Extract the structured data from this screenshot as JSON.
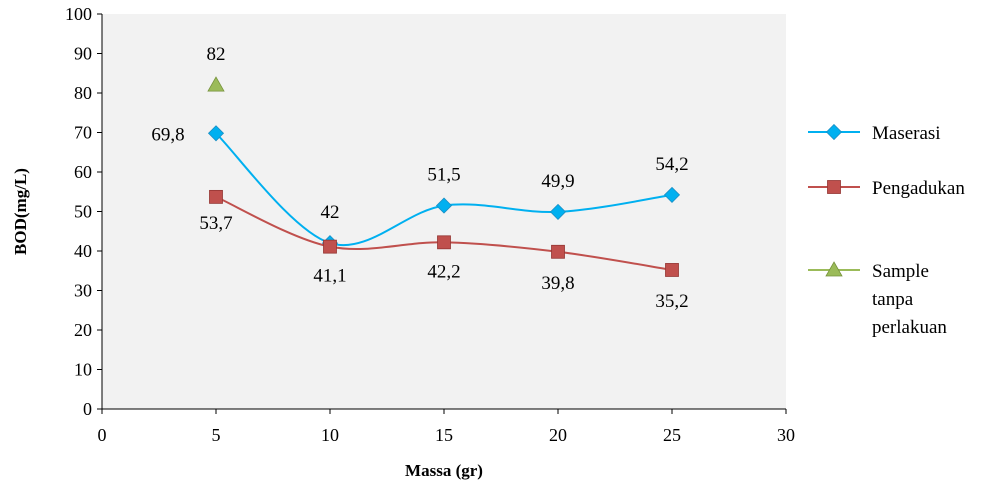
{
  "chart_data": {
    "type": "line",
    "title": "",
    "xlabel": "Massa (gr)",
    "ylabel": "BOD(mg/L)",
    "xlim": [
      0,
      30
    ],
    "ylim": [
      0,
      100
    ],
    "xticks": [
      0,
      5,
      10,
      15,
      20,
      25,
      30
    ],
    "yticks": [
      0,
      10,
      20,
      30,
      40,
      50,
      60,
      70,
      80,
      90,
      100
    ],
    "grid": false,
    "legend_position": "right",
    "series": [
      {
        "name": "Maserasi",
        "color": "#00B0F0",
        "marker": "diamond-icon",
        "smooth": true,
        "x": [
          5,
          10,
          15,
          20,
          25
        ],
        "y": [
          69.8,
          42,
          51.5,
          49.9,
          54.2
        ],
        "labels": [
          "69,8",
          "42",
          "51,5",
          "49,9",
          "54,2"
        ]
      },
      {
        "name": "Pengadukan",
        "color": "#C0504D",
        "marker": "square-icon",
        "smooth": true,
        "x": [
          5,
          10,
          15,
          20,
          25
        ],
        "y": [
          53.7,
          41.1,
          42.2,
          39.8,
          35.2
        ],
        "labels": [
          "53,7",
          "41,1",
          "42,2",
          "39,8",
          "35,2"
        ]
      },
      {
        "name": "Sample tanpa perlakuan",
        "name_lines": [
          "Sample",
          "tanpa",
          "perlakuan"
        ],
        "color": "#9BBB59",
        "marker": "triangle-icon",
        "smooth": false,
        "x": [
          5
        ],
        "y": [
          82
        ],
        "labels": [
          "82"
        ]
      }
    ]
  },
  "colors": {
    "plot_background": "#F2F2F2",
    "axis": "#000000"
  }
}
